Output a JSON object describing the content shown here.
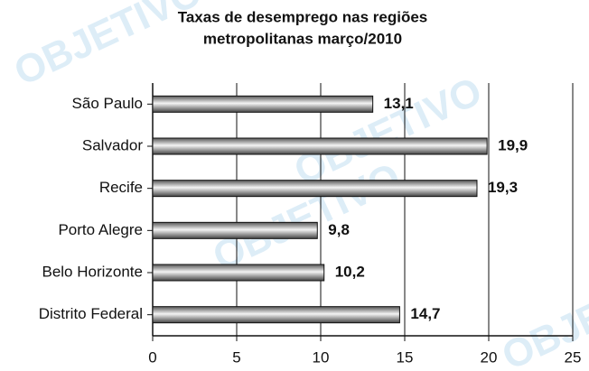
{
  "chart_data": {
    "type": "bar",
    "orientation": "horizontal",
    "title": [
      "Taxas de desemprego nas regiões",
      "metropolitanas março/2010"
    ],
    "watermark": "OBJETIVO",
    "categories": [
      "São Paulo",
      "Salvador",
      "Recife",
      "Porto Alegre",
      "Belo Horizonte",
      "Distrito Federal"
    ],
    "values": [
      13.1,
      19.9,
      19.3,
      9.8,
      10.2,
      14.7
    ],
    "value_labels": [
      "13,1",
      "19,9",
      "19,3",
      "9,8",
      "10,2",
      "14,7"
    ],
    "color": "#888888",
    "xlim": [
      0,
      25
    ],
    "xticks": [
      0,
      5,
      10,
      15,
      20,
      25
    ],
    "grid": true
  }
}
